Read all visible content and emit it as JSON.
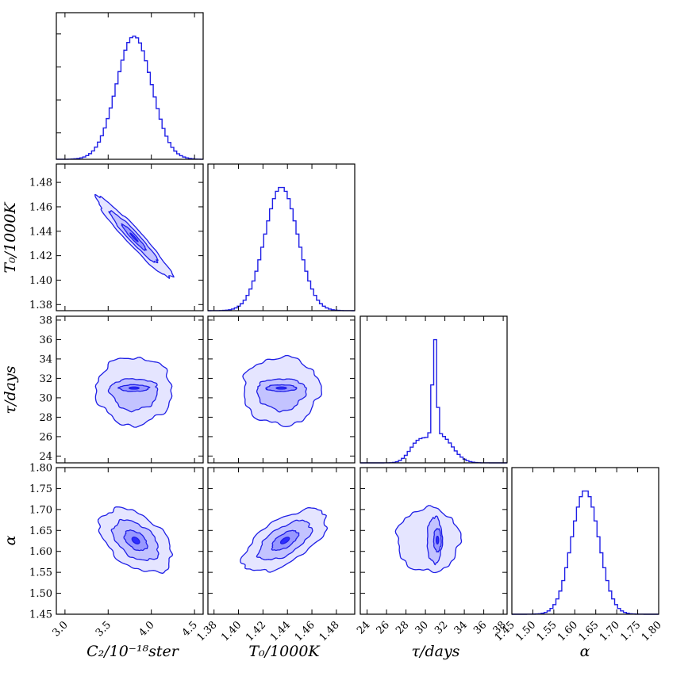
{
  "chart_data": {
    "type": "corner",
    "colors": {
      "line": "#1f1fe6",
      "fill": "#0000ff"
    },
    "parameters": [
      {
        "key": "C2",
        "label": "C₂/10⁻¹⁸ster",
        "range": [
          2.9,
          4.6
        ],
        "ticks": [
          3.0,
          3.5,
          4.0,
          4.5
        ],
        "tick_labels": [
          "3.0",
          "3.5",
          "4.0",
          "4.5"
        ],
        "mean": 3.8,
        "sd": 0.21
      },
      {
        "key": "T0",
        "label": "T₀/1000K",
        "range": [
          1.375,
          1.495
        ],
        "ticks": [
          1.38,
          1.4,
          1.42,
          1.44,
          1.46,
          1.48
        ],
        "tick_labels": [
          "1.38",
          "1.40",
          "1.42",
          "1.44",
          "1.46",
          "1.48"
        ],
        "mean": 1.436,
        "sd": 0.0135
      },
      {
        "key": "tau",
        "label": "τ/days",
        "range": [
          23.3,
          38.4
        ],
        "ticks": [
          24,
          26,
          28,
          30,
          32,
          34,
          36,
          38
        ],
        "tick_labels": [
          "24",
          "26",
          "28",
          "30",
          "32",
          "34",
          "36",
          "38"
        ],
        "mean": 30.8,
        "sd": 1.3
      },
      {
        "key": "alpha",
        "label": "α",
        "range": [
          1.45,
          1.8
        ],
        "ticks": [
          1.45,
          1.5,
          1.55,
          1.6,
          1.65,
          1.7,
          1.75,
          1.8
        ],
        "tick_labels": [
          "1.45",
          "1.50",
          "1.55",
          "1.60",
          "1.65",
          "1.70",
          "1.75",
          "1.80"
        ],
        "mean": 1.625,
        "sd": 0.035
      }
    ],
    "histograms": {
      "C2": {
        "type": "gauss",
        "mean": 3.8,
        "sd": 0.205
      },
      "T0": {
        "type": "gauss",
        "mean": 1.435,
        "sd": 0.0135
      },
      "tau": {
        "type": "mixture",
        "components": [
          {
            "w": 0.22,
            "mean": 29.2,
            "sd": 0.9
          },
          {
            "w": 0.3,
            "mean": 30.95,
            "sd": 0.22
          },
          {
            "w": 0.48,
            "mean": 31.5,
            "sd": 1.25
          }
        ]
      },
      "alpha": {
        "type": "gauss",
        "mean": 1.625,
        "sd": 0.0325
      }
    },
    "panels_2d": [
      {
        "x": "C2",
        "y": "T0",
        "center": [
          3.8,
          1.435
        ],
        "sx": 0.23,
        "sy": 0.0175,
        "rho": -0.96
      },
      {
        "x": "C2",
        "y": "tau",
        "center": [
          3.8,
          31.0
        ],
        "sx": 0.23,
        "sy": 1.75,
        "rho": 0.0,
        "bimodal": true
      },
      {
        "x": "T0",
        "y": "tau",
        "center": [
          1.435,
          31.0
        ],
        "sx": 0.0165,
        "sy": 1.75,
        "rho": 0.0,
        "bimodal": true
      },
      {
        "x": "C2",
        "y": "alpha",
        "center": [
          3.82,
          1.626
        ],
        "sx": 0.22,
        "sy": 0.04,
        "rho": -0.45
      },
      {
        "x": "T0",
        "y": "alpha",
        "center": [
          1.438,
          1.626
        ],
        "sx": 0.018,
        "sy": 0.039,
        "rho": 0.62
      },
      {
        "x": "tau",
        "y": "alpha",
        "center": [
          30.3,
          1.627
        ],
        "sx": 1.7,
        "sy": 0.04,
        "rho": 0.0,
        "vertical_core": true
      }
    ],
    "contour_levels": [
      0.2,
      0.6,
      1.2,
      1.9
    ],
    "xlabels": [
      "C₂/10⁻¹⁸ster",
      "T₀/1000K",
      "τ/days",
      "α"
    ],
    "ylabels": [
      "T₀/1000K",
      "τ/days",
      "α"
    ]
  }
}
